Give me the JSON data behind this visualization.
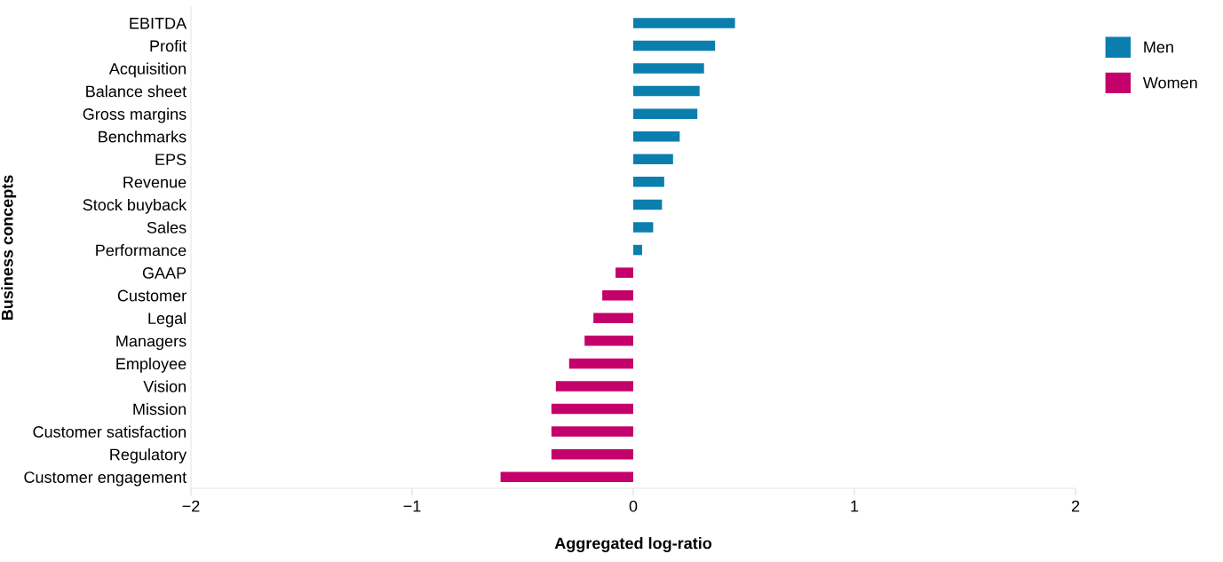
{
  "chart_data": {
    "type": "bar",
    "orientation": "horizontal",
    "xlabel": "Aggregated log-ratio",
    "ylabel": "Business concepts",
    "categories": [
      "EBITDA",
      "Profit",
      "Acquisition",
      "Balance sheet",
      "Gross margins",
      "Benchmarks",
      "EPS",
      "Revenue",
      "Stock buyback",
      "Sales",
      "Performance",
      "GAAP",
      "Customer",
      "Legal",
      "Managers",
      "Employee",
      "Vision",
      "Mission",
      "Customer satisfaction",
      "Regulatory",
      "Customer engagement"
    ],
    "series": [
      {
        "name": "Men",
        "color": "#0a7fae",
        "values": [
          0.46,
          0.37,
          0.32,
          0.3,
          0.29,
          0.21,
          0.18,
          0.14,
          0.13,
          0.09,
          0.04,
          null,
          null,
          null,
          null,
          null,
          null,
          null,
          null,
          null,
          null
        ]
      },
      {
        "name": "Women",
        "color": "#c4006a",
        "values": [
          null,
          null,
          null,
          null,
          null,
          null,
          null,
          null,
          null,
          null,
          null,
          -0.08,
          -0.14,
          -0.18,
          -0.22,
          -0.29,
          -0.35,
          -0.37,
          -0.37,
          -0.37,
          -0.6
        ]
      }
    ],
    "xlim": [
      -2,
      2
    ],
    "xticks": [
      {
        "value": -2,
        "label": "−2"
      },
      {
        "value": -1,
        "label": "−1"
      },
      0,
      1,
      {
        "value": 2,
        "label": "2"
      }
    ],
    "grid": false,
    "legend": "top right"
  }
}
